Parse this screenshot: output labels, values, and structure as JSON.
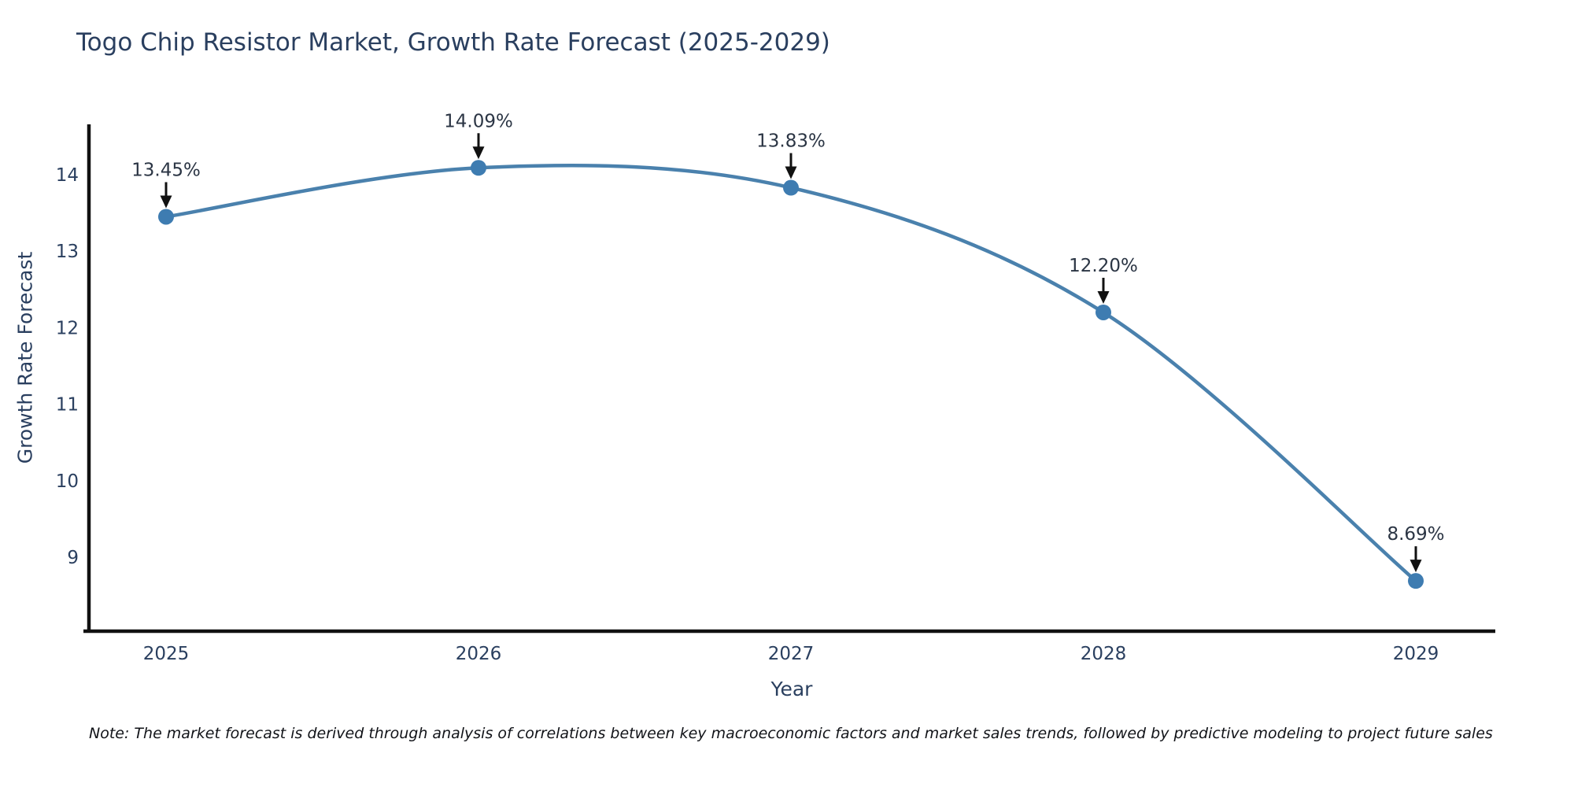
{
  "note": "Note: The market forecast is derived through analysis of correlations between key macroeconomic factors and market sales trends, followed by predictive modeling to project future sales",
  "chart_data": {
    "type": "line",
    "title": "Togo Chip Resistor Market, Growth Rate Forecast (2025-2029)",
    "xlabel": "Year",
    "ylabel": "Growth Rate Forecast",
    "x": [
      "2025",
      "2026",
      "2027",
      "2028",
      "2029"
    ],
    "values": [
      13.45,
      14.09,
      13.83,
      12.2,
      8.69
    ],
    "point_labels": [
      "13.45%",
      "14.09%",
      "13.83%",
      "12.20%",
      "8.69%"
    ],
    "y_ticks": [
      9,
      10,
      11,
      12,
      13,
      14
    ],
    "ylim": [
      8.05,
      14.65
    ],
    "line_shape": "spline",
    "grid": false,
    "legend_position": "none",
    "annotations": "value labels with down arrows above each data point",
    "colors": {
      "line": "#4a81ad",
      "marker": "#3e7cb1",
      "axis": "#111111",
      "tick_text": "#2a3f5f",
      "title_text": "#2a3f5f",
      "annotation_text": "#2b3544",
      "arrow": "#111111",
      "background": "#ffffff"
    }
  }
}
